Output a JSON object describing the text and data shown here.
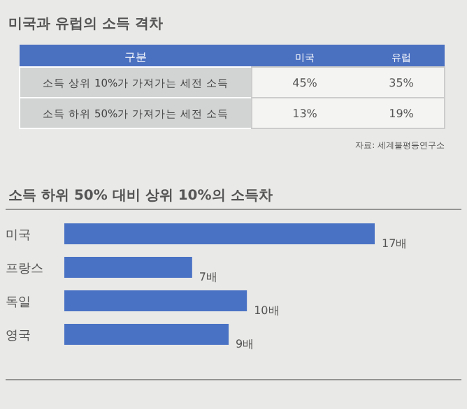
{
  "chart_data": [
    {
      "type": "other",
      "title": "미국과 유럽의 소득 격차",
      "categories": [
        "미국",
        "유럽"
      ],
      "y_categories": [
        "소득 상위 10%가 가져가는 세전 소득",
        "소득 하위 50%가 가져가는 세전 소득"
      ],
      "cell_labels": [
        [
          "45%",
          "35%"
        ],
        [
          "13%",
          "19%"
        ]
      ],
      "color": "#4a70c0",
      "annotations": [
        "구분",
        "자료: 세계불평등연구소"
      ]
    },
    {
      "type": "bar",
      "orientation": "horizontal",
      "title": "소득 하위 50% 대비 상위 10%의 소득차",
      "categories": [
        "미국",
        "프랑스",
        "독일",
        "영국"
      ],
      "values": [
        17,
        7,
        10,
        9
      ],
      "value_labels": [
        "17배",
        "7배",
        "10배",
        "9배"
      ],
      "color": "#4a72c4"
    }
  ]
}
